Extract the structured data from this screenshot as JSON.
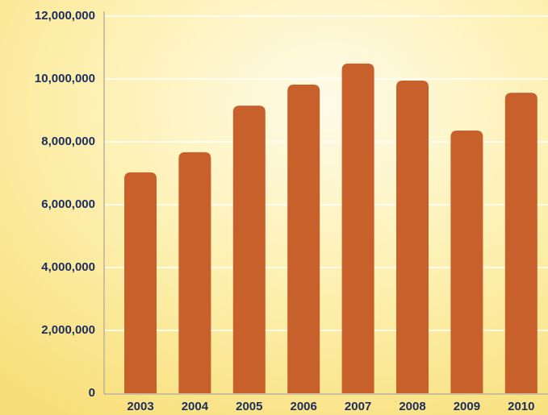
{
  "chart_data": {
    "type": "bar",
    "categories": [
      "2003",
      "2004",
      "2005",
      "2006",
      "2007",
      "2008",
      "2009",
      "2010"
    ],
    "values": [
      7030000,
      7670000,
      9150000,
      9820000,
      10490000,
      9950000,
      8360000,
      9560000
    ],
    "color": "#c8602b",
    "ylim": [
      0,
      12000000
    ],
    "yticks": [
      0,
      {
        "value": 2000000,
        "label": "2,000,000"
      },
      {
        "value": 4000000,
        "label": "4,000,000"
      },
      {
        "value": 6000000,
        "label": "6,000,000"
      },
      {
        "value": 8000000,
        "label": "8,000,000"
      },
      {
        "value": 10000000,
        "label": "10,000,000"
      },
      {
        "value": 12000000,
        "label": "12,000,000"
      }
    ],
    "grid": true
  }
}
